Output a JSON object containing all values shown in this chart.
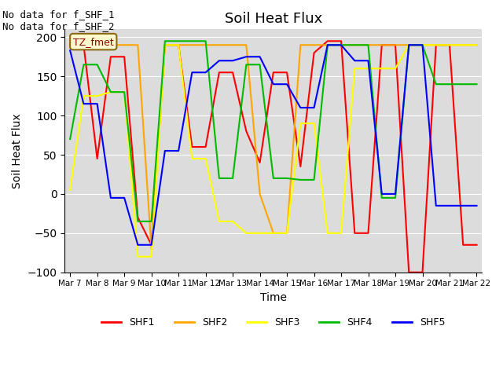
{
  "title": "Soil Heat Flux",
  "ylabel": "Soil Heat Flux",
  "xlabel": "Time",
  "ylim": [
    -100,
    210
  ],
  "yticks": [
    -100,
    -50,
    0,
    50,
    100,
    150,
    200
  ],
  "annotation_text": "No data for f_SHF_1\nNo data for f_SHF_2",
  "legend_label": "TZ_fmet",
  "background_color": "#dcdcdc",
  "series": {
    "SHF1": {
      "color": "#ff0000",
      "xs": [
        7,
        7.5,
        8,
        8.5,
        9,
        9.5,
        10,
        10.5,
        11,
        11.5,
        12,
        12.5,
        13,
        13.5,
        14,
        14.5,
        15,
        15.5,
        16,
        16.5,
        17,
        17.5,
        18,
        18.5,
        19,
        19.5,
        20,
        20.5,
        21,
        21.5,
        22
      ],
      "ys": [
        190,
        190,
        45,
        175,
        175,
        -30,
        -65,
        190,
        190,
        60,
        60,
        155,
        155,
        80,
        40,
        155,
        155,
        35,
        180,
        195,
        195,
        -50,
        -50,
        190,
        190,
        -100,
        -100,
        190,
        190,
        -65,
        -65
      ]
    },
    "SHF2": {
      "color": "#ffa500",
      "xs": [
        7,
        7.5,
        8,
        8.5,
        9,
        9.5,
        10,
        10.5,
        11,
        11.5,
        12,
        12.5,
        13,
        13.5,
        14,
        14.5,
        15,
        15.5,
        16,
        16.5,
        17,
        17.5,
        18,
        18.5,
        19,
        19.5,
        20,
        20.5,
        21,
        21.5,
        22
      ],
      "ys": [
        190,
        190,
        190,
        190,
        190,
        190,
        -70,
        190,
        190,
        190,
        190,
        190,
        190,
        190,
        0,
        -50,
        -50,
        190,
        190,
        190,
        190,
        190,
        190,
        190,
        190,
        190,
        190,
        190,
        190,
        190,
        190
      ]
    },
    "SHF3": {
      "color": "#ffff00",
      "xs": [
        7,
        7.5,
        8,
        8.5,
        9,
        9.5,
        10,
        10.5,
        11,
        11.5,
        12,
        12.5,
        13,
        13.5,
        14,
        14.5,
        15,
        15.5,
        16,
        16.5,
        17,
        17.5,
        18,
        18.5,
        19,
        19.5,
        20,
        20.5,
        21,
        21.5,
        22
      ],
      "ys": [
        5,
        125,
        125,
        130,
        130,
        -80,
        -80,
        190,
        190,
        45,
        45,
        -35,
        -35,
        -50,
        -50,
        -50,
        -50,
        90,
        90,
        -50,
        -50,
        160,
        160,
        160,
        160,
        190,
        190,
        190,
        190,
        190,
        190
      ]
    },
    "SHF4": {
      "color": "#00bb00",
      "xs": [
        7,
        7.5,
        8,
        8.5,
        9,
        9.5,
        10,
        10.5,
        11,
        11.5,
        12,
        12.5,
        13,
        13.5,
        14,
        14.5,
        15,
        15.5,
        16,
        16.5,
        17,
        17.5,
        18,
        18.5,
        19,
        19.5,
        20,
        20.5,
        21,
        21.5,
        22
      ],
      "ys": [
        70,
        165,
        165,
        130,
        130,
        -35,
        -35,
        195,
        195,
        195,
        195,
        20,
        20,
        165,
        165,
        20,
        20,
        18,
        18,
        190,
        190,
        190,
        190,
        -5,
        -5,
        190,
        190,
        140,
        140,
        140,
        140
      ]
    },
    "SHF5": {
      "color": "#0000ff",
      "xs": [
        7,
        7.5,
        8,
        8.5,
        9,
        9.5,
        10,
        10.5,
        11,
        11.5,
        12,
        12.5,
        13,
        13.5,
        14,
        14.5,
        15,
        15.5,
        16,
        16.5,
        17,
        17.5,
        18,
        18.5,
        19,
        19.5,
        20,
        20.5,
        21,
        21.5,
        22
      ],
      "ys": [
        183,
        115,
        115,
        -5,
        -5,
        -65,
        -65,
        55,
        55,
        155,
        155,
        170,
        170,
        175,
        175,
        140,
        140,
        110,
        110,
        190,
        190,
        170,
        170,
        0,
        0,
        190,
        190,
        -15,
        -15,
        -15,
        -15
      ]
    }
  },
  "x_tick_labels": [
    "Mar 7",
    "Mar 8",
    "Mar 9",
    "Mar 10",
    "Mar 11",
    "Mar 12",
    "Mar 13",
    "Mar 14",
    "Mar 15",
    "Mar 16",
    "Mar 17",
    "Mar 18",
    "Mar 19",
    "Mar 20",
    "Mar 21",
    "Mar 22"
  ],
  "x_tick_positions": [
    7,
    8,
    9,
    10,
    11,
    12,
    13,
    14,
    15,
    16,
    17,
    18,
    19,
    20,
    21,
    22
  ]
}
